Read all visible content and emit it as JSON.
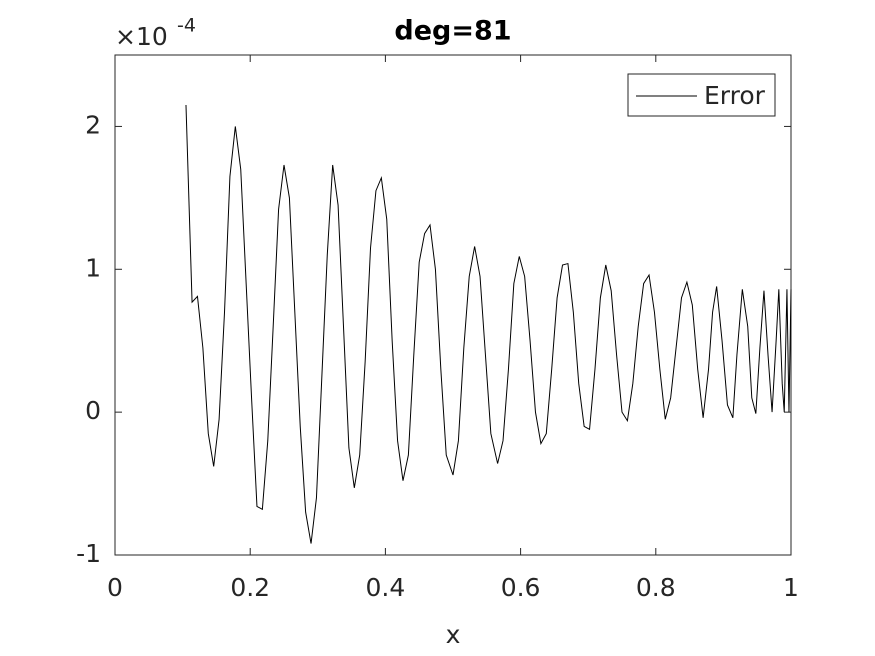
{
  "chart_data": {
    "type": "line",
    "title": "deg=81",
    "xlabel": "x",
    "y_multiplier": "×10",
    "y_exponent": "-4",
    "xlim": [
      0,
      1
    ],
    "xticks": [
      0,
      0.2,
      0.4,
      0.6,
      0.8,
      1
    ],
    "ylim": [
      -1,
      2.5
    ],
    "yticks": [
      -1,
      0,
      1,
      2
    ],
    "grid": false,
    "legend": "northeast",
    "series": [
      {
        "name": "Error",
        "color": "#000000",
        "x": [
          0.105,
          0.114,
          0.122,
          0.13,
          0.138,
          0.146,
          0.154,
          0.162,
          0.17,
          0.178,
          0.186,
          0.194,
          0.202,
          0.21,
          0.218,
          0.226,
          0.234,
          0.242,
          0.25,
          0.258,
          0.266,
          0.274,
          0.282,
          0.29,
          0.298,
          0.306,
          0.314,
          0.322,
          0.33,
          0.338,
          0.346,
          0.354,
          0.362,
          0.37,
          0.378,
          0.386,
          0.394,
          0.402,
          0.41,
          0.418,
          0.426,
          0.434,
          0.442,
          0.45,
          0.458,
          0.466,
          0.474,
          0.482,
          0.49,
          0.5,
          0.508,
          0.516,
          0.524,
          0.532,
          0.54,
          0.548,
          0.556,
          0.566,
          0.574,
          0.582,
          0.59,
          0.598,
          0.606,
          0.614,
          0.622,
          0.63,
          0.638,
          0.646,
          0.654,
          0.662,
          0.67,
          0.678,
          0.686,
          0.694,
          0.702,
          0.71,
          0.718,
          0.726,
          0.734,
          0.742,
          0.75,
          0.758,
          0.766,
          0.774,
          0.782,
          0.79,
          0.798,
          0.806,
          0.814,
          0.822,
          0.83,
          0.838,
          0.846,
          0.854,
          0.862,
          0.87,
          0.878,
          0.884,
          0.89,
          0.898,
          0.906,
          0.914,
          0.92,
          0.928,
          0.936,
          0.942,
          0.948,
          0.954,
          0.96,
          0.966,
          0.972,
          0.978,
          0.982,
          0.987,
          0.99,
          0.994,
          0.997,
          1.0
        ],
        "values": [
          2.15,
          0.77,
          0.81,
          0.45,
          -0.15,
          -0.38,
          -0.05,
          0.7,
          1.65,
          2.0,
          1.7,
          0.9,
          0.1,
          -0.66,
          -0.68,
          -0.2,
          0.6,
          1.42,
          1.73,
          1.5,
          0.7,
          -0.1,
          -0.7,
          -0.92,
          -0.6,
          0.25,
          1.1,
          1.73,
          1.45,
          0.6,
          -0.25,
          -0.53,
          -0.3,
          0.35,
          1.15,
          1.55,
          1.64,
          1.35,
          0.5,
          -0.2,
          -0.48,
          -0.3,
          0.4,
          1.05,
          1.25,
          1.31,
          1.0,
          0.3,
          -0.3,
          -0.44,
          -0.2,
          0.45,
          0.95,
          1.16,
          0.95,
          0.4,
          -0.15,
          -0.36,
          -0.2,
          0.3,
          0.9,
          1.09,
          0.95,
          0.5,
          0.0,
          -0.22,
          -0.15,
          0.3,
          0.8,
          1.03,
          1.04,
          0.7,
          0.2,
          -0.1,
          -0.12,
          0.3,
          0.8,
          1.03,
          0.85,
          0.4,
          0.0,
          -0.06,
          0.2,
          0.6,
          0.9,
          0.96,
          0.7,
          0.3,
          -0.05,
          0.1,
          0.45,
          0.8,
          0.91,
          0.75,
          0.3,
          -0.04,
          0.3,
          0.7,
          0.88,
          0.5,
          0.05,
          -0.04,
          0.4,
          0.86,
          0.6,
          0.1,
          -0.01,
          0.45,
          0.85,
          0.4,
          0.0,
          0.5,
          0.86,
          0.2,
          0.0,
          0.86,
          0.0,
          0.86
        ]
      }
    ]
  }
}
